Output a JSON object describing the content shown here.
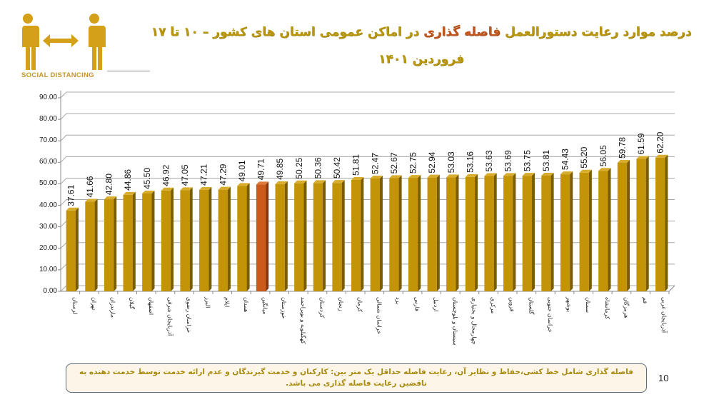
{
  "logo": {
    "caption": "SOCIAL DISTANCING",
    "icon": "social-distancing-icon",
    "color": "#d4a017"
  },
  "title": {
    "part1": "درصد موارد رعایت دستورالعمل ",
    "highlight": "فاصله گذاری",
    "part2": " در اماکن عمومی استان های کشور – ۱۰ تا ۱۷ فروردین ۱۴۰۱"
  },
  "note": {
    "text": "فاصله گذاری شامل خط کشی،حفاظ و نظایر آن، رعایت فاصله حداقل یک متر بین: کارکنان  و خدمت گیرندگان و عدم ارائه خدمت توسط خدمت دهنده به ناقضین رعایت فاصله گذاری می باشد."
  },
  "page_number": "10",
  "colors": {
    "bar": "#c49408",
    "bar_side": "#7a5c04",
    "bar_top": "#d8ad2e",
    "highlight_bar": "#cc5a1a",
    "highlight_side": "#8a3508",
    "highlight_top": "#e07a3a",
    "grid": "#a8a8a8"
  },
  "chart_data": {
    "type": "bar",
    "title": "درصد موارد رعایت دستورالعمل فاصله گذاری در اماکن عمومی استان های کشور – ۱۰ تا ۱۷ فروردین ۱۴۰۱",
    "xlabel": "",
    "ylabel": "",
    "ylim": [
      0,
      90
    ],
    "yticks": [
      "0.00",
      "10.00",
      "20.00",
      "30.00",
      "40.00",
      "50.00",
      "60.00",
      "70.00",
      "80.00",
      "90.00"
    ],
    "grid": true,
    "legend": null,
    "highlight_index": 10,
    "categories": [
      "لرستان",
      "تهران",
      "مازندران",
      "گیلان",
      "اصفهان",
      "آذربایجان شرقی",
      "خراسان رضوی",
      "البرز",
      "ایلام",
      "همدان",
      "میانگین",
      "خوزستان",
      "کهگیلویه و بویراحمد",
      "کردستان",
      "زنجان",
      "کرمان",
      "خراسان شمالی",
      "یزد",
      "فارس",
      "اردبیل",
      "سیستان و بلوچستان",
      "چهارمحال و بختیاری",
      "مرکزی",
      "قزوین",
      "گلستان",
      "خراسان جنوبی",
      "بوشهر",
      "سمنان",
      "کرمانشاه",
      "هرمزگان",
      "قم",
      "آذربایجان غربی"
    ],
    "values": [
      37.61,
      41.66,
      42.8,
      44.86,
      45.5,
      46.92,
      47.05,
      47.21,
      47.29,
      49.01,
      49.71,
      49.85,
      50.25,
      50.36,
      50.42,
      51.81,
      52.47,
      52.67,
      52.75,
      52.94,
      53.03,
      53.16,
      53.63,
      53.69,
      53.75,
      53.81,
      54.43,
      55.2,
      56.05,
      59.78,
      61.59,
      62.2
    ],
    "value_labels": [
      "37.61",
      "41.66",
      "42.80",
      "44.86",
      "45.50",
      "46.92",
      "47.05",
      "47.21",
      "47.29",
      "49.01",
      "49.71",
      "49.85",
      "50.25",
      "50.36",
      "50.42",
      "51.81",
      "52.47",
      "52.67",
      "52.75",
      "52.94",
      "53.03",
      "53.16",
      "53.63",
      "53.69",
      "53.75",
      "53.81",
      "54.43",
      "55.20",
      "56.05",
      "59.78",
      "61.59",
      "62.20"
    ]
  }
}
